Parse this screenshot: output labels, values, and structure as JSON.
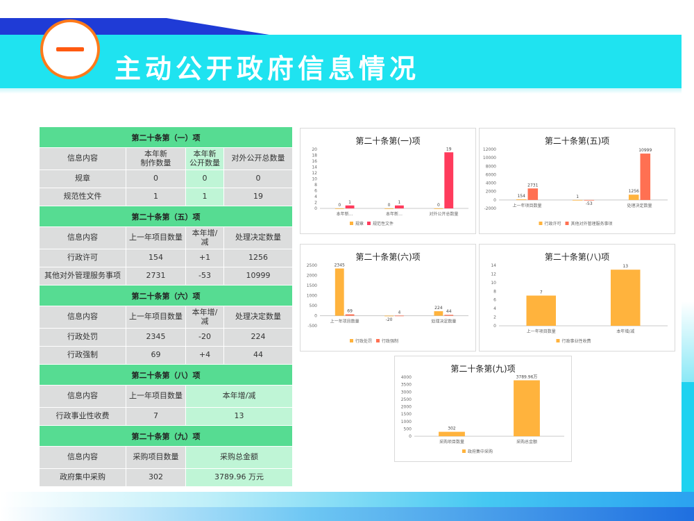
{
  "header": {
    "title": "主动公开政府信息情况",
    "badge": "一"
  },
  "table": [
    {
      "section": "第二十条第（一）项",
      "header": [
        "信息内容",
        "本年新\n制作数量",
        "本年新\n公开数量",
        "对外公开总数量"
      ],
      "rows": [
        [
          "规章",
          "0",
          "0",
          "0"
        ],
        [
          "规范性文件",
          "1",
          "1",
          "19"
        ]
      ]
    },
    {
      "section": "第二十条第（五）项",
      "header": [
        "信息内容",
        "上一年项目数量",
        "本年增/\n减",
        "处理决定数量"
      ],
      "rows": [
        [
          "行政许可",
          "154",
          "+1",
          "1256"
        ],
        [
          "其他对外管理服务事项",
          "2731",
          "-53",
          "10999"
        ]
      ]
    },
    {
      "section": "第二十条第（六）项",
      "header": [
        "信息内容",
        "上一年项目数量",
        "本年增/\n减",
        "处理决定数量"
      ],
      "rows": [
        [
          "行政处罚",
          "2345",
          "-20",
          "224"
        ],
        [
          "行政强制",
          "69",
          "+4",
          "44"
        ]
      ]
    },
    {
      "section": "第二十条第（八）项",
      "header": [
        "信息内容",
        "上一年项目数量",
        "本年增/减"
      ],
      "rows": [
        [
          "行政事业性收费",
          "7",
          "13"
        ]
      ]
    },
    {
      "section": "第二十条第（九）项",
      "header": [
        "信息内容",
        "采购项目数量",
        "采购总金额"
      ],
      "rows": [
        [
          "政府集中采购",
          "302",
          "3789.96 万元"
        ]
      ]
    }
  ],
  "colors": {
    "series1": "#ffb33d",
    "series2": "#ff3b5c",
    "series2b": "#ff7052",
    "section": "#56dc92",
    "highlight": "#bff5d6"
  },
  "chart_data": [
    {
      "type": "bar",
      "title": "第二十条第(一)项",
      "categories": [
        "本年新…",
        "本年新…",
        "对外公开总数量"
      ],
      "ylim": [
        0,
        20
      ],
      "yticks": [
        0,
        2,
        4,
        6,
        8,
        10,
        12,
        14,
        16,
        18,
        20
      ],
      "series": [
        {
          "name": "规章",
          "values": [
            0,
            0,
            0
          ]
        },
        {
          "name": "规范性文件",
          "values": [
            1,
            1,
            19
          ]
        }
      ],
      "legend": "bottom"
    },
    {
      "type": "bar",
      "title": "第二十条第(五)项",
      "categories": [
        "上一年项目数量",
        "",
        "处理决定数量"
      ],
      "ylim": [
        -2000,
        12000
      ],
      "yticks": [
        -2000,
        0,
        2000,
        4000,
        6000,
        8000,
        10000,
        12000
      ],
      "series": [
        {
          "name": "行政许可",
          "values": [
            154,
            1,
            1256
          ]
        },
        {
          "name": "其他对外管理服务事项",
          "values": [
            2731,
            -53,
            10999
          ]
        }
      ],
      "legend": "bottom"
    },
    {
      "type": "bar",
      "title": "第二十条第(六)项",
      "categories": [
        "上一年项目数量",
        "",
        "处理决定数量"
      ],
      "ylim": [
        -500,
        2500
      ],
      "yticks": [
        -500,
        0,
        500,
        1000,
        1500,
        2000,
        2500
      ],
      "series": [
        {
          "name": "行政处罚",
          "values": [
            2345,
            -20,
            224
          ]
        },
        {
          "name": "行政强制",
          "values": [
            69,
            4,
            44
          ]
        }
      ],
      "legend": "bottom"
    },
    {
      "type": "bar",
      "title": "第二十条第(八)项",
      "categories": [
        "上一年项目数量",
        "本年增/减"
      ],
      "ylim": [
        0,
        14
      ],
      "yticks": [
        0,
        2,
        4,
        6,
        8,
        10,
        12,
        14
      ],
      "series": [
        {
          "name": "行政事业性收费",
          "values": [
            7,
            13
          ]
        }
      ],
      "legend": "bottom"
    },
    {
      "type": "bar",
      "title": "第二十条第(九)项",
      "categories": [
        "采购项目数量",
        "采购总金额"
      ],
      "ylim": [
        0,
        4000
      ],
      "yticks": [
        0,
        500,
        1000,
        1500,
        2000,
        2500,
        3000,
        3500,
        4000
      ],
      "series": [
        {
          "name": "政府集中采购",
          "values": [
            302,
            3789.96
          ],
          "labels": [
            "302",
            "3789.96万"
          ]
        }
      ],
      "legend": "bottom"
    }
  ]
}
